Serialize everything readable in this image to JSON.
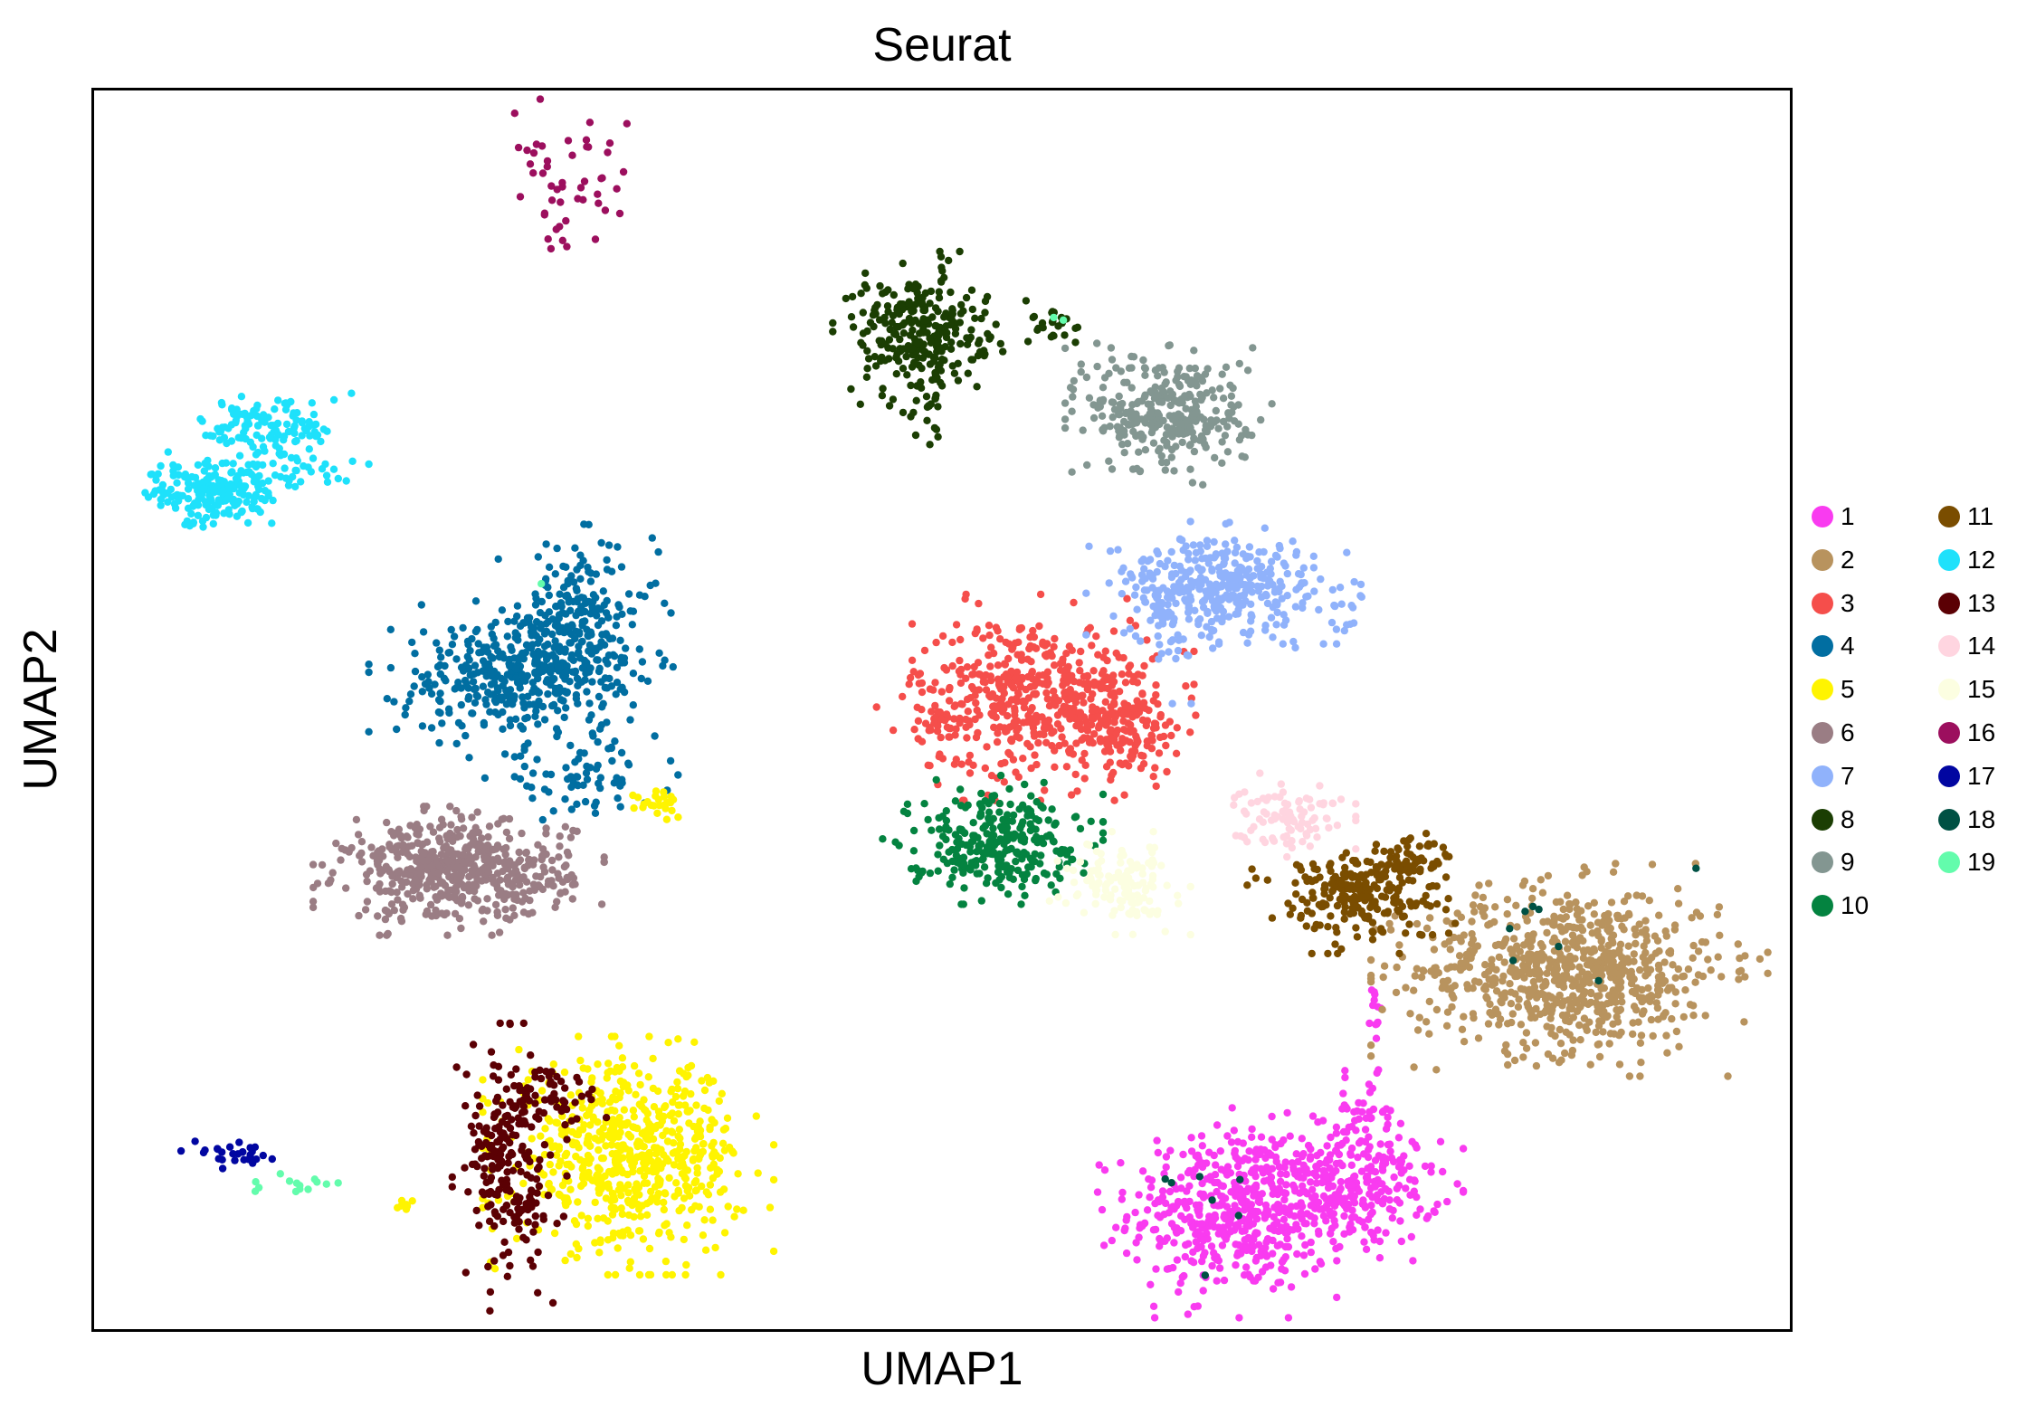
{
  "chart_data": {
    "type": "scatter",
    "title": "Seurat",
    "xlabel": "UMAP1",
    "ylabel": "UMAP2",
    "xlim": [
      0,
      100
    ],
    "ylim": [
      0,
      100
    ],
    "grid": false,
    "legend_position": "right",
    "legend_columns": 2,
    "series": [
      {
        "name": "1",
        "color": "#f93bf0",
        "clusters": [
          {
            "x": 67.5,
            "y": 9.5,
            "sx": 3.2,
            "sy": 3.3,
            "n": 520
          },
          {
            "x": 74.5,
            "y": 11.5,
            "sx": 2.4,
            "sy": 2.3,
            "n": 230
          },
          {
            "x": 74.8,
            "y": 17.5,
            "sx": 1.0,
            "sy": 1.4,
            "n": 40
          },
          {
            "x": 75.5,
            "y": 24.5,
            "sx": 0.2,
            "sy": 2.0,
            "n": 12
          }
        ]
      },
      {
        "name": "2",
        "color": "#b8935e",
        "clusters": [
          {
            "x": 87.0,
            "y": 29.0,
            "sx": 4.5,
            "sy": 3.3,
            "n": 760
          }
        ]
      },
      {
        "name": "3",
        "color": "#f54e4b",
        "clusters": [
          {
            "x": 55.5,
            "y": 51.0,
            "sx": 3.6,
            "sy": 3.2,
            "n": 520
          },
          {
            "x": 60.8,
            "y": 48.5,
            "sx": 1.6,
            "sy": 1.8,
            "n": 120
          },
          {
            "x": 49.5,
            "y": 49.0,
            "sx": 1.0,
            "sy": 0.6,
            "n": 12
          }
        ]
      },
      {
        "name": "4",
        "color": "#016ea1",
        "clusters": [
          {
            "x": 24.0,
            "y": 52.5,
            "sx": 3.0,
            "sy": 2.5,
            "n": 300
          },
          {
            "x": 28.5,
            "y": 56.0,
            "sx": 2.3,
            "sy": 3.5,
            "n": 280
          },
          {
            "x": 28.5,
            "y": 44.5,
            "sx": 2.5,
            "sy": 1.3,
            "n": 70
          }
        ]
      },
      {
        "name": "5",
        "color": "#fff400",
        "clusters": [
          {
            "x": 31.5,
            "y": 14.0,
            "sx": 3.3,
            "sy": 3.7,
            "n": 640
          },
          {
            "x": 33.5,
            "y": 42.5,
            "sx": 0.8,
            "sy": 0.6,
            "n": 24
          },
          {
            "x": 18.5,
            "y": 10.0,
            "sx": 0.6,
            "sy": 0.25,
            "n": 8
          }
        ]
      },
      {
        "name": "6",
        "color": "#9a7d84",
        "clusters": [
          {
            "x": 21.5,
            "y": 37.0,
            "sx": 3.3,
            "sy": 2.0,
            "n": 540
          }
        ]
      },
      {
        "name": "7",
        "color": "#90b2fb",
        "clusters": [
          {
            "x": 65.0,
            "y": 60.0,
            "sx": 2.5,
            "sy": 2.0,
            "n": 220
          },
          {
            "x": 68.5,
            "y": 60.0,
            "sx": 2.5,
            "sy": 1.8,
            "n": 150
          },
          {
            "x": 63.5,
            "y": 57.0,
            "sx": 0.6,
            "sy": 2.5,
            "n": 30
          },
          {
            "x": 73.8,
            "y": 58.0,
            "sx": 0.8,
            "sy": 1.0,
            "n": 15
          }
        ]
      },
      {
        "name": "8",
        "color": "#1b3e03",
        "clusters": [
          {
            "x": 48.5,
            "y": 80.5,
            "sx": 1.9,
            "sy": 2.5,
            "n": 260
          },
          {
            "x": 49.2,
            "y": 74.0,
            "sx": 0.4,
            "sy": 1.5,
            "n": 20
          },
          {
            "x": 52.8,
            "y": 79.5,
            "sx": 0.9,
            "sy": 0.6,
            "n": 8
          },
          {
            "x": 56.7,
            "y": 81.0,
            "sx": 0.7,
            "sy": 1.0,
            "n": 24
          }
        ]
      },
      {
        "name": "9",
        "color": "#839691",
        "clusters": [
          {
            "x": 63.5,
            "y": 74.0,
            "sx": 2.4,
            "sy": 2.4,
            "n": 320
          },
          {
            "x": 60.0,
            "y": 77.5,
            "sx": 1.2,
            "sy": 0.5,
            "n": 6
          }
        ]
      },
      {
        "name": "10",
        "color": "#048340",
        "clusters": [
          {
            "x": 53.0,
            "y": 39.5,
            "sx": 2.5,
            "sy": 2.0,
            "n": 280
          }
        ]
      },
      {
        "name": "11",
        "color": "#7a4d00",
        "clusters": [
          {
            "x": 74.5,
            "y": 35.0,
            "sx": 2.5,
            "sy": 1.8,
            "n": 230
          },
          {
            "x": 77.5,
            "y": 38.0,
            "sx": 1.2,
            "sy": 1.0,
            "n": 50
          }
        ]
      },
      {
        "name": "12",
        "color": "#1ee1fb",
        "clusters": [
          {
            "x": 7.0,
            "y": 67.5,
            "sx": 1.8,
            "sy": 1.3,
            "n": 200
          },
          {
            "x": 10.5,
            "y": 73.0,
            "sx": 2.0,
            "sy": 1.2,
            "n": 110
          },
          {
            "x": 12.0,
            "y": 69.5,
            "sx": 2.0,
            "sy": 1.0,
            "n": 40
          }
        ]
      },
      {
        "name": "13",
        "color": "#5b0004",
        "clusters": [
          {
            "x": 24.5,
            "y": 13.0,
            "sx": 1.3,
            "sy": 4.5,
            "n": 230
          },
          {
            "x": 27.0,
            "y": 19.0,
            "sx": 1.5,
            "sy": 1.2,
            "n": 40
          }
        ]
      },
      {
        "name": "14",
        "color": "#ffd5e0",
        "clusters": [
          {
            "x": 70.5,
            "y": 41.5,
            "sx": 1.5,
            "sy": 1.3,
            "n": 95
          }
        ]
      },
      {
        "name": "15",
        "color": "#fcfee1",
        "clusters": [
          {
            "x": 60.5,
            "y": 36.0,
            "sx": 1.6,
            "sy": 1.6,
            "n": 130
          }
        ]
      },
      {
        "name": "16",
        "color": "#9c0f5e",
        "clusters": [
          {
            "x": 28.5,
            "y": 91.5,
            "sx": 1.8,
            "sy": 3.0,
            "n": 50
          }
        ]
      },
      {
        "name": "17",
        "color": "#0106a1",
        "clusters": [
          {
            "x": 8.0,
            "y": 14.0,
            "sx": 1.3,
            "sy": 0.5,
            "n": 28
          }
        ]
      },
      {
        "name": "18",
        "color": "#005144",
        "clusters": [
          {
            "x": 65.5,
            "y": 9.0,
            "sx": 2.0,
            "sy": 2.0,
            "n": 7
          },
          {
            "x": 88.0,
            "y": 32.0,
            "sx": 4.0,
            "sy": 2.0,
            "n": 8
          }
        ]
      },
      {
        "name": "19",
        "color": "#63fcac",
        "clusters": [
          {
            "x": 12.5,
            "y": 11.5,
            "sx": 1.8,
            "sy": 0.4,
            "n": 14
          },
          {
            "x": 57.0,
            "y": 81.5,
            "sx": 0.2,
            "sy": 0.2,
            "n": 2
          },
          {
            "x": 26.0,
            "y": 60.0,
            "sx": 0.2,
            "sy": 0.2,
            "n": 1
          }
        ]
      }
    ]
  }
}
